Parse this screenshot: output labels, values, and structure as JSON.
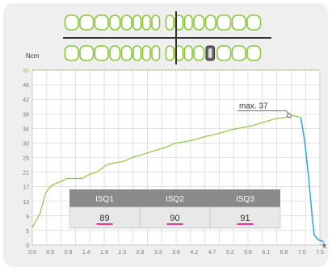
{
  "chart_data": {
    "type": "line",
    "ylabel": "Ncm",
    "xlabel": "s",
    "xlim": [
      0,
      7.5
    ],
    "ylim": [
      0,
      50
    ],
    "x_ticks": [
      "0.0",
      "0.5",
      "0.9",
      "1.4",
      "1.9",
      "2.3",
      "2.8",
      "3.3",
      "3.8",
      "4.2",
      "4.7",
      "5.2",
      "5.6",
      "6.1",
      "6.6",
      "7.0",
      "7.5"
    ],
    "y_ticks": [
      "0",
      "5",
      "9",
      "13",
      "17",
      "21",
      "25",
      "30",
      "34",
      "38",
      "42",
      "46",
      "50"
    ],
    "grid": true,
    "annotation": {
      "label": "max. 37",
      "x": 6.7,
      "y": 37
    },
    "series": [
      {
        "color": "#8cc63f",
        "points": [
          [
            0,
            5
          ],
          [
            0.2,
            9
          ],
          [
            0.35,
            15
          ],
          [
            0.5,
            17
          ],
          [
            0.7,
            18
          ],
          [
            0.9,
            19
          ],
          [
            1.3,
            19
          ],
          [
            1.45,
            20
          ],
          [
            1.7,
            21
          ],
          [
            1.95,
            23
          ],
          [
            2.4,
            24
          ],
          [
            2.6,
            25
          ],
          [
            2.9,
            26
          ],
          [
            3.2,
            27
          ],
          [
            3.5,
            28
          ],
          [
            3.7,
            29
          ],
          [
            4.2,
            30
          ],
          [
            4.5,
            31
          ],
          [
            4.9,
            32
          ],
          [
            5.2,
            33
          ],
          [
            5.7,
            34
          ],
          [
            6.0,
            35
          ],
          [
            6.3,
            36
          ],
          [
            6.6,
            36.5
          ],
          [
            6.8,
            37
          ],
          [
            7.0,
            36.5
          ]
        ]
      },
      {
        "color": "#3da8e0",
        "points": [
          [
            7.0,
            36.5
          ],
          [
            7.1,
            30
          ],
          [
            7.2,
            20
          ],
          [
            7.3,
            8
          ],
          [
            7.35,
            3
          ],
          [
            7.45,
            1.5
          ],
          [
            7.6,
            1
          ]
        ]
      }
    ]
  },
  "iso_table": {
    "headers": [
      "ISQ1",
      "ISQ2",
      "ISQ3"
    ],
    "values": [
      "89",
      "90",
      "91"
    ]
  },
  "teeth": {
    "upper_count": 16,
    "lower_count": 16,
    "highlighted_tooth": "lower-right-5",
    "outline_color": "#8cc63f"
  },
  "colors": {
    "torque_line": "#8cc63f",
    "release_line": "#3da8e0",
    "table_header_bg": "#8a8a8a",
    "underline": "#e0007a"
  }
}
